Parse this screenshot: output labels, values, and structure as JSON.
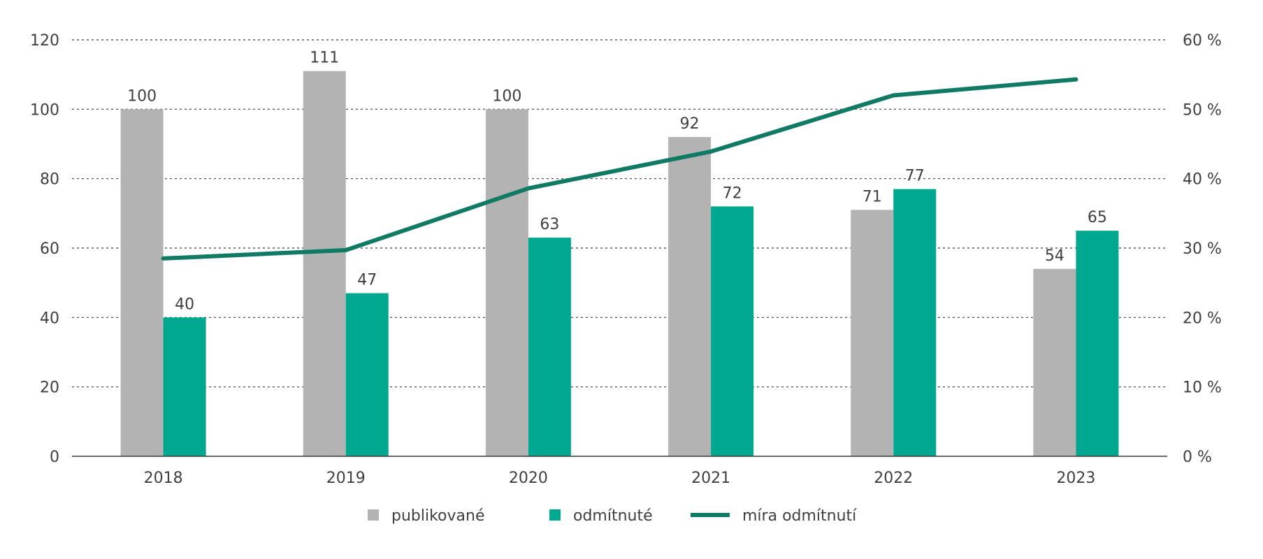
{
  "chart_data": {
    "type": "bar",
    "categories": [
      "2018",
      "2019",
      "2020",
      "2021",
      "2022",
      "2023"
    ],
    "series": [
      {
        "name": "publikované",
        "kind": "bar",
        "axis": "left",
        "color": "#b3b3b3",
        "values": [
          100,
          111,
          100,
          92,
          71,
          54
        ]
      },
      {
        "name": "odmítnuté",
        "kind": "bar",
        "axis": "left",
        "color": "#00a88f",
        "values": [
          40,
          47,
          63,
          72,
          77,
          65
        ]
      },
      {
        "name": "míra odmítnutí",
        "kind": "line",
        "axis": "right",
        "color": "#117a65",
        "values": [
          28.5,
          29.7,
          38.6,
          43.9,
          52,
          54.3
        ]
      }
    ],
    "data_labels": {
      "publikované": [
        "100",
        "111",
        "100",
        "92",
        "71",
        "54"
      ],
      "odmítnuté": [
        "40",
        "47",
        "63",
        "72",
        "77",
        "65"
      ]
    },
    "y_left": {
      "min": 0,
      "max": 120,
      "ticks": [
        "0",
        "20",
        "40",
        "60",
        "80",
        "100",
        "120"
      ]
    },
    "y_right": {
      "min": 0,
      "max": 60,
      "ticks": [
        "0 %",
        "10 %",
        "20 %",
        "30 %",
        "40 %",
        "50 %",
        "60 %"
      ]
    },
    "grid": "horizontal-dotted",
    "legend": {
      "placement": "bottom-center",
      "items": [
        "publikované",
        "odmítnuté",
        "míra odmítnutí"
      ]
    }
  }
}
